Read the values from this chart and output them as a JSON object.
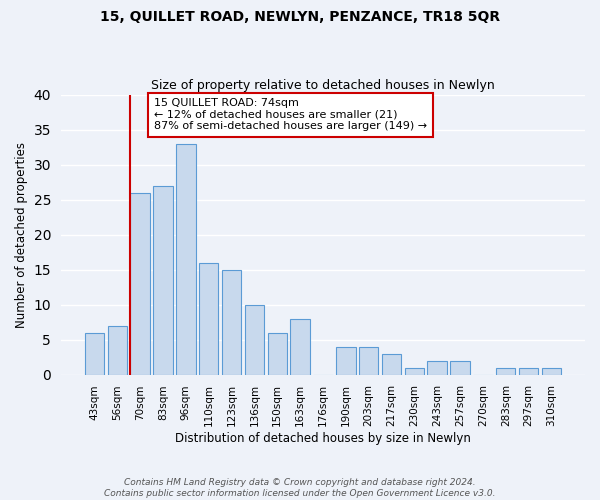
{
  "title": "15, QUILLET ROAD, NEWLYN, PENZANCE, TR18 5QR",
  "subtitle": "Size of property relative to detached houses in Newlyn",
  "xlabel": "Distribution of detached houses by size in Newlyn",
  "ylabel": "Number of detached properties",
  "bar_labels": [
    "43sqm",
    "56sqm",
    "70sqm",
    "83sqm",
    "96sqm",
    "110sqm",
    "123sqm",
    "136sqm",
    "150sqm",
    "163sqm",
    "176sqm",
    "190sqm",
    "203sqm",
    "217sqm",
    "230sqm",
    "243sqm",
    "257sqm",
    "270sqm",
    "283sqm",
    "297sqm",
    "310sqm"
  ],
  "bar_heights": [
    6,
    7,
    26,
    27,
    33,
    16,
    15,
    10,
    6,
    8,
    0,
    4,
    4,
    3,
    1,
    2,
    2,
    0,
    1,
    1,
    1
  ],
  "bar_color": "#c8d9ed",
  "bar_edge_color": "#5b9bd5",
  "vline_x_index": 2,
  "vline_color": "#cc0000",
  "ylim": [
    0,
    40
  ],
  "yticks": [
    0,
    5,
    10,
    15,
    20,
    25,
    30,
    35,
    40
  ],
  "annotation_text": "15 QUILLET ROAD: 74sqm\n← 12% of detached houses are smaller (21)\n87% of semi-detached houses are larger (149) →",
  "annotation_box_color": "#ffffff",
  "annotation_box_edge": "#cc0000",
  "footer_line1": "Contains HM Land Registry data © Crown copyright and database right 2024.",
  "footer_line2": "Contains public sector information licensed under the Open Government Licence v3.0.",
  "background_color": "#eef2f9",
  "grid_color": "#ffffff"
}
